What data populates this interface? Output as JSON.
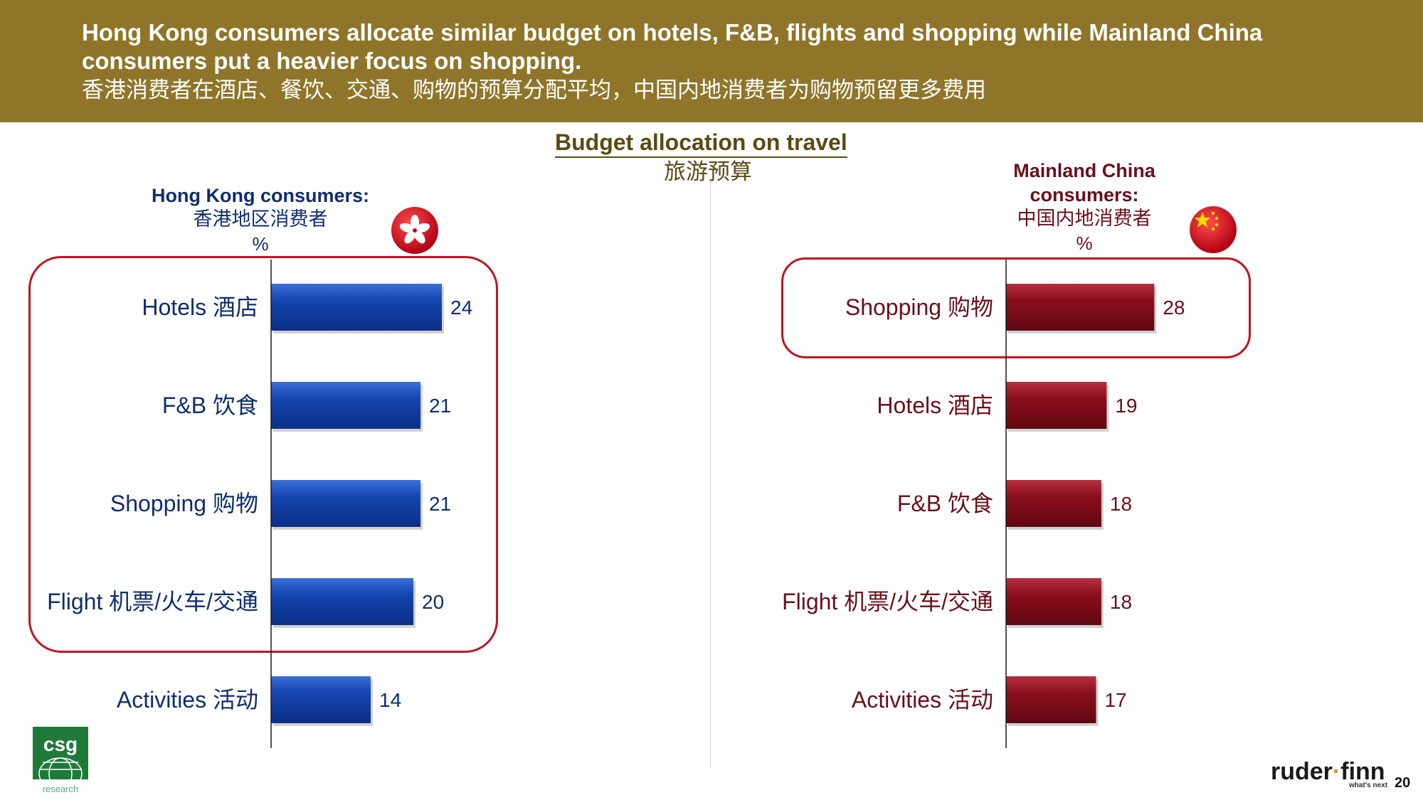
{
  "header": {
    "line1": "Hong Kong consumers allocate similar budget on hotels, F&B, flights and shopping while Mainland China",
    "line2": "consumers put a heavier focus on shopping.",
    "line3_zh": "香港消费者在酒店、餐饮、交通、购物的预算分配平均，中国内地消费者为购物预留更多费用"
  },
  "main_title": "Budget allocation on travel",
  "main_subtitle_zh": "旅游预算",
  "hk": {
    "title": "Hong Kong consumers:",
    "title_zh": "香港地区消费者",
    "unit": "%"
  },
  "cn": {
    "title_line1": "Mainland China",
    "title_line2": "consumers:",
    "title_zh": "中国内地消费者",
    "unit": "%"
  },
  "colors": {
    "header_bg": "#8f7529",
    "hk_bar": "#0f3ea0",
    "cn_bar": "#8b0f1c",
    "hk_label": "#0f2e6e",
    "cn_label": "#6b0f1a",
    "highlight": "#c0141f"
  },
  "chart_data": [
    {
      "type": "bar",
      "orientation": "horizontal",
      "title": "Hong Kong consumers: 香港地区消费者 %",
      "categories": [
        "Hotels 酒店",
        "F&B 饮食",
        "Shopping 购物",
        "Flight 机票/火车/交通",
        "Activities 活动"
      ],
      "values": [
        24,
        21,
        21,
        20,
        14
      ],
      "xlim": [
        0,
        28
      ],
      "grid": false,
      "highlighted": [
        "Hotels 酒店",
        "F&B 饮食",
        "Shopping 购物",
        "Flight 机票/火车/交通"
      ]
    },
    {
      "type": "bar",
      "orientation": "horizontal",
      "title": "Mainland China consumers: 中国内地消费者 %",
      "categories": [
        "Shopping 购物",
        "Hotels 酒店",
        "F&B 饮食",
        "Flight 机票/火车/交通",
        "Activities 活动"
      ],
      "values": [
        28,
        19,
        18,
        18,
        17
      ],
      "xlim": [
        0,
        28
      ],
      "grid": false,
      "highlighted": [
        "Shopping 购物"
      ]
    }
  ],
  "footer": {
    "csg_logo_text": "csg",
    "csg_logo_sub": "research",
    "rf_part1": "ruder",
    "rf_dot": "·",
    "rf_part2": "finn",
    "rf_tagline": "what's next",
    "page_number": "20"
  }
}
